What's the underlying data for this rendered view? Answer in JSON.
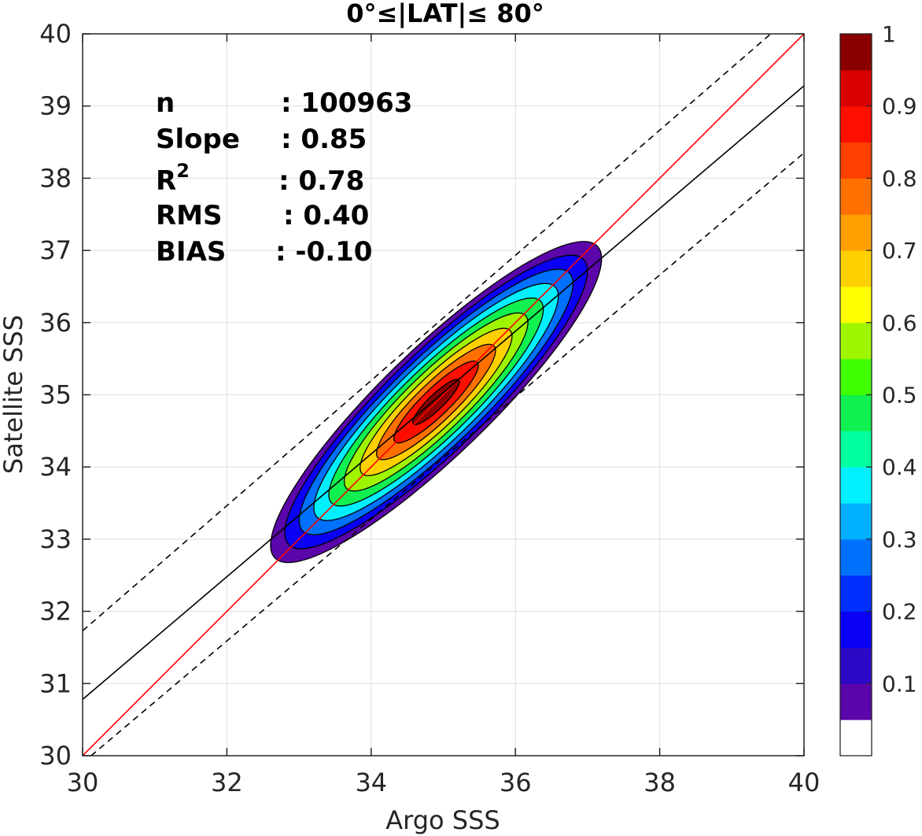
{
  "chart_data": {
    "type": "heatmap",
    "title": "0°≤|LAT|≤ 80°",
    "xlabel": "Argo SSS",
    "ylabel": "Satellite SSS",
    "xlim": [
      30,
      40
    ],
    "ylim": [
      30,
      40
    ],
    "xticks": [
      "30",
      "32",
      "34",
      "36",
      "38",
      "40"
    ],
    "yticks": [
      "30",
      "31",
      "32",
      "33",
      "34",
      "35",
      "36",
      "37",
      "38",
      "39",
      "40"
    ],
    "grid": true,
    "stats": [
      {
        "key": "n",
        "sep": ": ",
        "value": "100963"
      },
      {
        "key": "Slope",
        "sep": ": ",
        "value": "0.85"
      },
      {
        "key": "R",
        "sup": "2",
        "sep": ": ",
        "value": "0.78"
      },
      {
        "key": "RMS",
        "sep": ": ",
        "value": "0.40"
      },
      {
        "key": "BIAS",
        "sep": ": ",
        "value": "-0.10"
      }
    ],
    "density_peak": {
      "x": 34.9,
      "y": 34.9
    },
    "lines": [
      {
        "kind": "one-to-one",
        "color": "#ff0000",
        "style": "solid",
        "slope": 1.0,
        "intercept": 0.0
      },
      {
        "kind": "fit",
        "color": "#000000",
        "style": "solid",
        "slope": 0.85,
        "points": [
          [
            30,
            30.78
          ],
          [
            40,
            39.28
          ]
        ]
      },
      {
        "kind": "upper-bound",
        "color": "#000000",
        "style": "dashed",
        "points": [
          [
            30,
            31.73
          ],
          [
            40,
            40.4
          ]
        ]
      },
      {
        "kind": "lower-bound",
        "color": "#000000",
        "style": "dashed",
        "points": [
          [
            30,
            29.9
          ],
          [
            40,
            38.35
          ]
        ]
      }
    ],
    "contour_levels": [
      0.05,
      0.15,
      0.25,
      0.35,
      0.45,
      0.55,
      0.65,
      0.75,
      0.85,
      0.95
    ],
    "colorbar": {
      "range": [
        0,
        1
      ],
      "ticks": [
        "0.1",
        "0.2",
        "0.3",
        "0.4",
        "0.5",
        "0.6",
        "0.7",
        "0.8",
        "0.9",
        "1"
      ],
      "colors": [
        "#ffffff",
        "#5a06aa",
        "#2d09c7",
        "#0a00f5",
        "#0030ff",
        "#0070ff",
        "#00b0ff",
        "#00f0ff",
        "#00ffa0",
        "#10f050",
        "#40ff00",
        "#9ff500",
        "#ffff00",
        "#ffd000",
        "#ffa000",
        "#ff7000",
        "#ff4000",
        "#ff0f00",
        "#d80000",
        "#8a0000"
      ]
    }
  }
}
